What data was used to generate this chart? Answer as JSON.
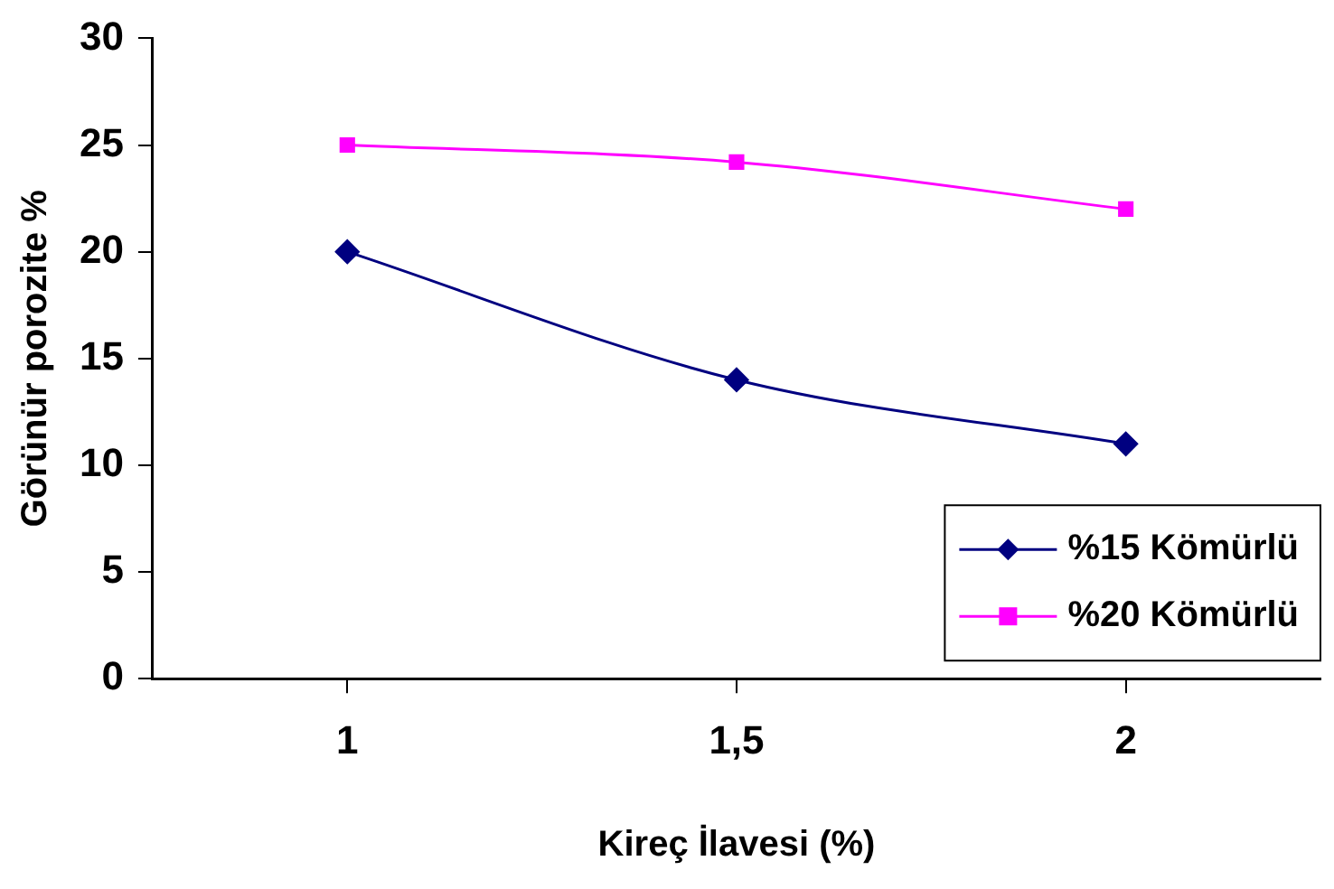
{
  "chart_data": {
    "type": "line",
    "xlabel": "Kireç İlavesi (%)",
    "ylabel": "Görünür porozite %",
    "categories": [
      "1",
      "1,5",
      "2"
    ],
    "series": [
      {
        "name": "%15 Kömürlü",
        "color": "#000080",
        "marker": "diamond",
        "values": [
          20,
          14,
          11
        ]
      },
      {
        "name": "%20 Kömürlü",
        "color": "#ff00ff",
        "marker": "square",
        "values": [
          25,
          24.2,
          22
        ]
      }
    ],
    "ylim": [
      0,
      30
    ],
    "yticks": [
      0,
      5,
      10,
      15,
      20,
      25,
      30
    ],
    "grid": false,
    "legend": "bottom right"
  }
}
